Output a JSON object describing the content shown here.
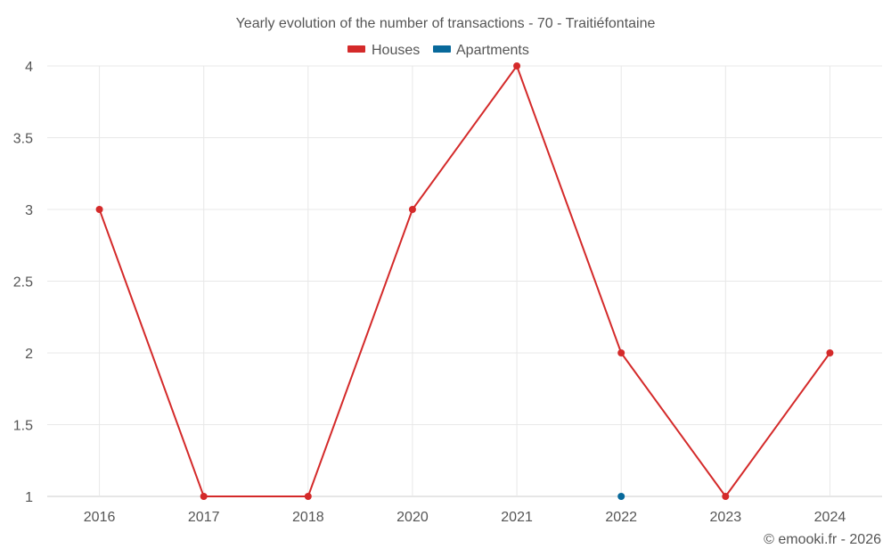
{
  "chart_data": {
    "type": "line",
    "title": "Yearly evolution of the number of transactions - 70 - Traitiéfontaine",
    "categories": [
      "2016",
      "2017",
      "2018",
      "2020",
      "2021",
      "2022",
      "2023",
      "2024"
    ],
    "ylim": [
      1,
      4
    ],
    "yticks": [
      "1",
      "1.5",
      "2",
      "2.5",
      "3",
      "3.5",
      "4"
    ],
    "ytick_values": [
      1,
      1.5,
      2,
      2.5,
      3,
      3.5,
      4
    ],
    "grid": true,
    "legend_position": "top-center",
    "series": [
      {
        "name": "Houses",
        "color": "#d42a2a",
        "values": [
          3,
          1,
          1,
          3,
          4,
          2,
          1,
          2
        ]
      },
      {
        "name": "Apartments",
        "color": "#08699b",
        "values": [
          null,
          null,
          null,
          null,
          null,
          1,
          null,
          null
        ]
      }
    ]
  },
  "credit": "© emooki.fr - 2026"
}
